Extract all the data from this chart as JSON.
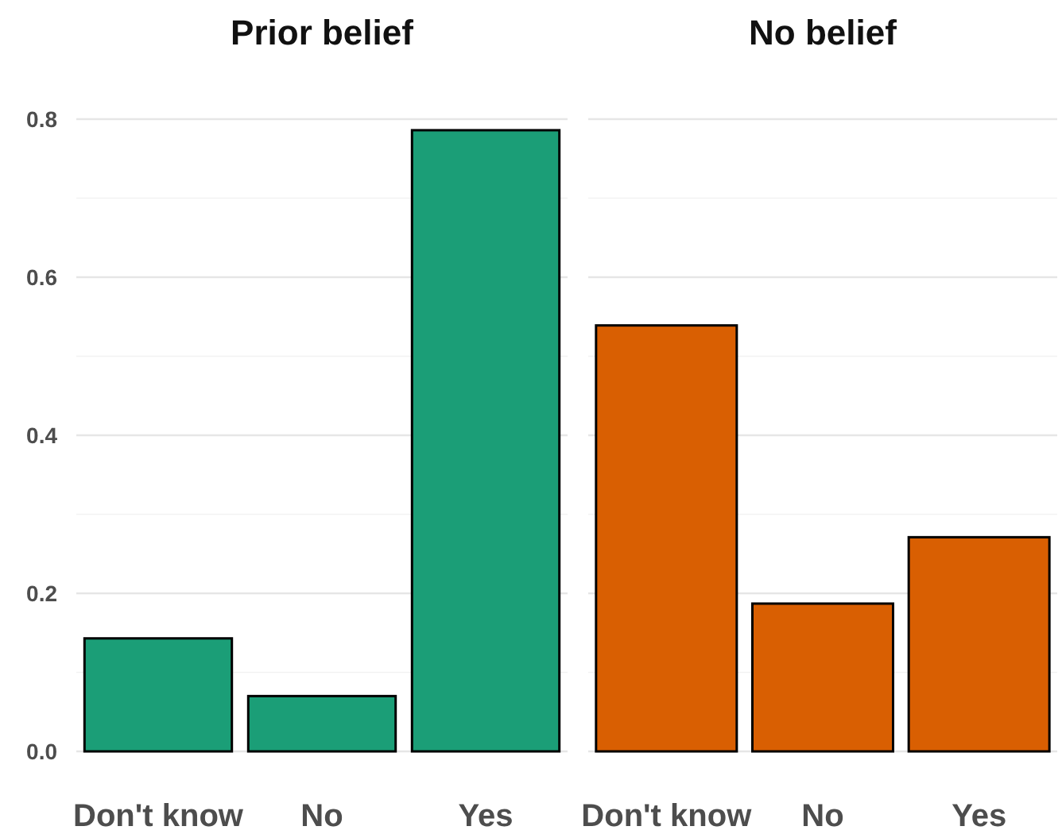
{
  "chart_data": [
    {
      "type": "bar",
      "title": "Prior belief",
      "categories": [
        "Don't know",
        "No",
        "Yes"
      ],
      "values": [
        0.143,
        0.07,
        0.786
      ],
      "color": "#1b9e77",
      "ylim": [
        0,
        0.8
      ],
      "yticks": [
        {
          "value": 0,
          "label": "0.0"
        },
        {
          "value": 0.1,
          "label": null
        },
        {
          "value": 0.2,
          "label": "0.2"
        },
        {
          "value": 0.3,
          "label": null
        },
        {
          "value": 0.4,
          "label": "0.4"
        },
        {
          "value": 0.5,
          "label": null
        },
        {
          "value": 0.6,
          "label": "0.6"
        },
        {
          "value": 0.7,
          "label": null
        },
        {
          "value": 0.8,
          "label": "0.8"
        }
      ],
      "grid": "y"
    },
    {
      "type": "bar",
      "title": "No belief",
      "categories": [
        "Don't know",
        "No",
        "Yes"
      ],
      "values": [
        0.539,
        0.187,
        0.271
      ],
      "color": "#d95f02",
      "ylim": [
        0,
        0.8
      ],
      "yticks": [
        {
          "value": 0,
          "label": null
        },
        {
          "value": 0.1,
          "label": null
        },
        {
          "value": 0.2,
          "label": null
        },
        {
          "value": 0.3,
          "label": null
        },
        {
          "value": 0.4,
          "label": null
        },
        {
          "value": 0.5,
          "label": null
        },
        {
          "value": 0.6,
          "label": null
        },
        {
          "value": 0.7,
          "label": null
        },
        {
          "value": 0.8,
          "label": null
        }
      ],
      "grid": "y",
      "tick_labels": "x"
    }
  ]
}
